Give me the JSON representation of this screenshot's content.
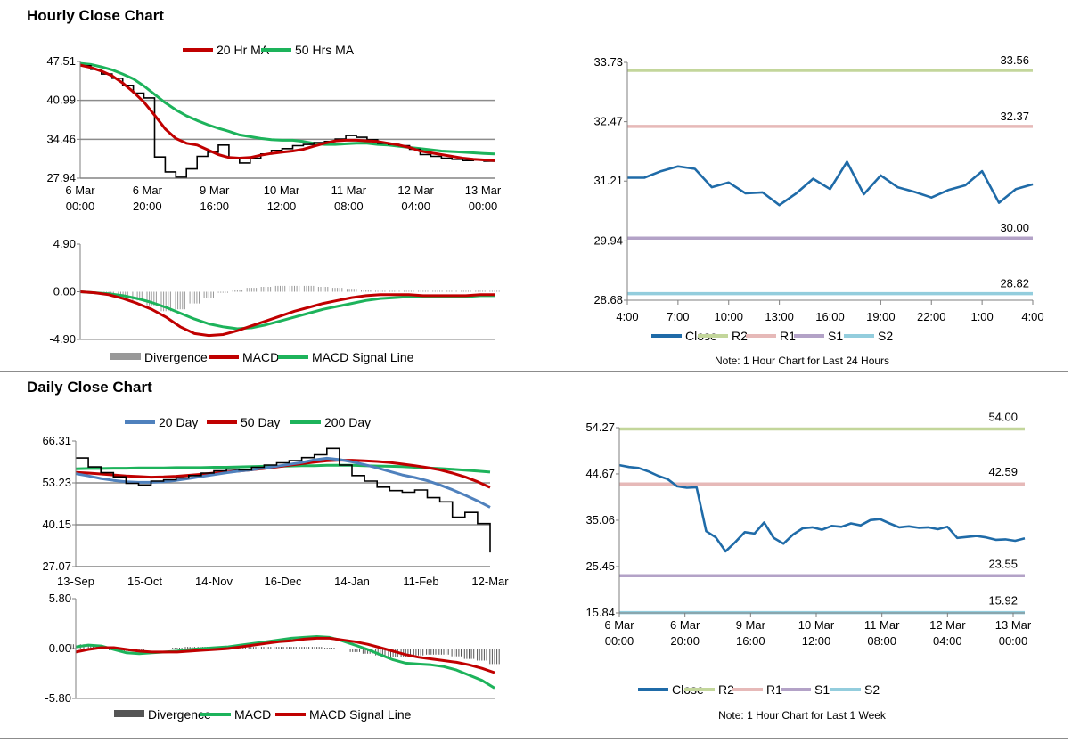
{
  "hourly": {
    "title": "Hourly Close Chart",
    "price_chart": {
      "type": "line",
      "legend": [
        {
          "name": "20 Hr MA",
          "color": "#c00000"
        },
        {
          "name": "50 Hrs MA",
          "color": "#1db35b"
        }
      ],
      "y_ticks": [
        "47.51",
        "40.99",
        "34.46",
        "27.94"
      ],
      "ylim": [
        27.94,
        47.51
      ],
      "x_ticks": [
        [
          "6 Mar",
          "00:00"
        ],
        [
          "6 Mar",
          "20:00"
        ],
        [
          "9 Mar",
          "16:00"
        ],
        [
          "10 Mar",
          "12:00"
        ],
        [
          "11 Mar",
          "08:00"
        ],
        [
          "12 Mar",
          "04:00"
        ],
        [
          "13 Mar",
          "00:00"
        ]
      ],
      "close": [
        46.8,
        46.2,
        45.4,
        44.7,
        43.5,
        42.2,
        41.4,
        31.5,
        29.0,
        28.1,
        29.5,
        31.6,
        32.3,
        33.5,
        31.4,
        30.5,
        31.3,
        32.0,
        32.6,
        32.9,
        33.4,
        33.6,
        33.9,
        34.1,
        34.5,
        35.1,
        34.8,
        34.4,
        33.8,
        33.6,
        33.4,
        32.8,
        31.9,
        31.6,
        31.3,
        31.1,
        30.9,
        31.0,
        30.8,
        30.9
      ],
      "ma20": [
        46.9,
        46.5,
        45.9,
        45.1,
        43.9,
        42.4,
        40.7,
        38.5,
        36.2,
        34.6,
        33.8,
        33.5,
        32.7,
        31.9,
        31.4,
        31.3,
        31.4,
        31.8,
        32.1,
        32.3,
        32.5,
        32.8,
        33.3,
        33.8,
        34.2,
        34.3,
        34.3,
        34.2,
        34.1,
        33.8,
        33.5,
        33.1,
        32.5,
        32.2,
        31.9,
        31.6,
        31.3,
        31.1,
        31.0,
        30.9
      ],
      "ma50": [
        47.2,
        47.0,
        46.6,
        46.1,
        45.4,
        44.6,
        43.4,
        42.0,
        40.6,
        39.4,
        38.4,
        37.6,
        36.9,
        36.3,
        35.8,
        35.2,
        34.9,
        34.6,
        34.4,
        34.3,
        34.3,
        34.1,
        33.8,
        33.6,
        33.6,
        33.7,
        33.8,
        33.8,
        33.6,
        33.5,
        33.3,
        33.1,
        32.9,
        32.7,
        32.5,
        32.4,
        32.3,
        32.2,
        32.1,
        32.0
      ]
    },
    "macd_chart": {
      "type": "line",
      "legend": [
        {
          "name": "Divergence",
          "color": "#999999"
        },
        {
          "name": "MACD",
          "color": "#c00000"
        },
        {
          "name": "MACD Signal Line",
          "color": "#1db35b"
        }
      ],
      "y_ticks": [
        "4.90",
        "0.00",
        "-4.90"
      ],
      "ylim": [
        -4.9,
        4.9
      ],
      "macd": [
        0,
        -0.1,
        -0.3,
        -0.7,
        -1.2,
        -1.8,
        -2.6,
        -3.6,
        -4.3,
        -4.5,
        -4.4,
        -4.0,
        -3.5,
        -3.0,
        -2.5,
        -2.0,
        -1.6,
        -1.2,
        -0.9,
        -0.6,
        -0.4,
        -0.3,
        -0.3,
        -0.3,
        -0.4,
        -0.4,
        -0.4,
        -0.4,
        -0.3,
        -0.3
      ],
      "signal": [
        0,
        -0.1,
        -0.2,
        -0.4,
        -0.7,
        -1.1,
        -1.6,
        -2.2,
        -2.8,
        -3.3,
        -3.6,
        -3.8,
        -3.7,
        -3.4,
        -3.0,
        -2.6,
        -2.2,
        -1.8,
        -1.5,
        -1.2,
        -0.9,
        -0.7,
        -0.6,
        -0.5,
        -0.5,
        -0.5,
        -0.5,
        -0.5,
        -0.4,
        -0.4
      ],
      "divergence": [
        0,
        -0.1,
        -0.2,
        -0.5,
        -0.9,
        -1.4,
        -2.0,
        -1.8,
        -1.2,
        -0.6,
        -0.1,
        0.2,
        0.4,
        0.5,
        0.6,
        0.6,
        0.6,
        0.5,
        0.4,
        0.3,
        0.2,
        0.1,
        0.1,
        0.1,
        0.1,
        0.1,
        0.1,
        0.1,
        0.1,
        0.1
      ]
    },
    "level_chart": {
      "type": "line",
      "y_ticks": [
        "33.73",
        "32.47",
        "31.21",
        "29.94",
        "28.68"
      ],
      "ylim": [
        28.68,
        33.73
      ],
      "x_ticks": [
        "4:00",
        "7:00",
        "10:00",
        "13:00",
        "16:00",
        "19:00",
        "22:00",
        "1:00",
        "4:00"
      ],
      "levels": [
        {
          "name": "R2",
          "value": 33.56,
          "label": "33.56",
          "color": "#c3d69b"
        },
        {
          "name": "R1",
          "value": 32.37,
          "label": "32.37",
          "color": "#e6b9b8"
        },
        {
          "name": "S1",
          "value": 30.0,
          "label": "30.00",
          "color": "#b3a2c7"
        },
        {
          "name": "S2",
          "value": 28.82,
          "label": "28.82",
          "color": "#93cddd"
        }
      ],
      "close": [
        31.28,
        31.28,
        31.42,
        31.52,
        31.47,
        31.08,
        31.18,
        30.95,
        30.97,
        30.7,
        30.95,
        31.26,
        31.04,
        31.62,
        30.93,
        31.33,
        31.08,
        30.98,
        30.86,
        31.02,
        31.12,
        31.42,
        30.75,
        31.04,
        31.14
      ],
      "legend": [
        {
          "name": "Close",
          "color": "#1f6ba8"
        },
        {
          "name": "R2",
          "color": "#c3d69b"
        },
        {
          "name": "R1",
          "color": "#e6b9b8"
        },
        {
          "name": "S1",
          "color": "#b3a2c7"
        },
        {
          "name": "S2",
          "color": "#93cddd"
        }
      ],
      "note": "Note: 1 Hour Chart for Last 24 Hours"
    }
  },
  "daily": {
    "title": "Daily Close Chart",
    "price_chart": {
      "type": "line",
      "legend": [
        {
          "name": "20 Day",
          "color": "#4f81bd"
        },
        {
          "name": "50 Day",
          "color": "#c00000"
        },
        {
          "name": "200 Day",
          "color": "#1db35b"
        }
      ],
      "y_ticks": [
        "66.31",
        "53.23",
        "40.15",
        "27.07"
      ],
      "ylim": [
        27.07,
        66.31
      ],
      "x_ticks": [
        "13-Sep",
        "15-Oct",
        "14-Nov",
        "16-Dec",
        "14-Jan",
        "11-Feb",
        "12-Mar"
      ],
      "close": [
        61.0,
        58.2,
        56.4,
        55.1,
        53.1,
        52.6,
        53.8,
        54.2,
        54.8,
        55.5,
        56.3,
        57.0,
        57.5,
        57.3,
        58.1,
        58.8,
        59.5,
        60.2,
        61.1,
        62.0,
        64.0,
        58.8,
        55.5,
        53.8,
        51.9,
        50.8,
        50.3,
        51.0,
        48.6,
        47.3,
        42.5,
        44.0,
        40.5,
        31.5
      ],
      "ma20": [
        56.1,
        55.4,
        54.6,
        54.0,
        53.6,
        53.4,
        53.4,
        53.6,
        54.0,
        54.6,
        55.2,
        55.8,
        56.4,
        56.9,
        57.3,
        57.9,
        58.4,
        59.0,
        59.6,
        60.4,
        60.9,
        60.5,
        59.8,
        58.9,
        57.9,
        56.8,
        55.7,
        54.9,
        53.9,
        52.6,
        51.1,
        49.4,
        47.6,
        45.6
      ],
      "ma50": [
        56.5,
        56.3,
        56.0,
        55.7,
        55.4,
        55.2,
        55.0,
        55.1,
        55.3,
        55.6,
        55.9,
        56.3,
        56.6,
        56.9,
        57.3,
        57.7,
        58.2,
        58.7,
        59.2,
        59.7,
        60.1,
        60.3,
        60.3,
        60.1,
        59.9,
        59.6,
        59.1,
        58.6,
        58.0,
        57.3,
        56.3,
        55.1,
        53.6,
        51.8
      ],
      "ma200": [
        57.6,
        57.7,
        57.7,
        57.8,
        57.8,
        57.9,
        57.9,
        57.9,
        58.0,
        58.0,
        58.0,
        58.1,
        58.1,
        58.2,
        58.3,
        58.4,
        58.4,
        58.5,
        58.6,
        58.6,
        58.7,
        58.7,
        58.7,
        58.6,
        58.5,
        58.4,
        58.3,
        58.1,
        57.9,
        57.7,
        57.5,
        57.2,
        56.9,
        56.6
      ]
    },
    "macd_chart": {
      "type": "line",
      "legend": [
        {
          "name": "Divergence",
          "color": "#555555"
        },
        {
          "name": "MACD",
          "color": "#1db35b"
        },
        {
          "name": "MACD Signal Line",
          "color": "#c00000"
        }
      ],
      "y_ticks": [
        "5.80",
        "0.00",
        "-5.80"
      ],
      "ylim": [
        -5.8,
        5.8
      ],
      "macd": [
        0.2,
        0.4,
        0.3,
        -0.1,
        -0.5,
        -0.6,
        -0.5,
        -0.4,
        -0.3,
        -0.1,
        0.0,
        0.1,
        0.2,
        0.4,
        0.6,
        0.8,
        1.0,
        1.2,
        1.3,
        1.4,
        1.3,
        0.9,
        0.4,
        -0.1,
        -0.7,
        -1.3,
        -1.7,
        -1.8,
        -1.9,
        -2.1,
        -2.5,
        -3.1,
        -3.7,
        -4.6
      ],
      "signal": [
        -0.4,
        -0.1,
        0.1,
        0.1,
        -0.1,
        -0.3,
        -0.4,
        -0.4,
        -0.4,
        -0.3,
        -0.2,
        -0.1,
        0.0,
        0.2,
        0.4,
        0.6,
        0.8,
        0.9,
        1.1,
        1.2,
        1.2,
        1.0,
        0.8,
        0.5,
        0.1,
        -0.3,
        -0.7,
        -1.0,
        -1.2,
        -1.4,
        -1.6,
        -1.9,
        -2.3,
        -2.8
      ],
      "divergence": [
        0.5,
        0.5,
        0.2,
        -0.2,
        -0.3,
        -0.3,
        -0.1,
        0.0,
        0.1,
        0.2,
        0.2,
        0.2,
        0.2,
        0.2,
        0.2,
        0.2,
        0.2,
        0.2,
        0.2,
        0.2,
        0.1,
        -0.1,
        -0.4,
        -0.6,
        -0.8,
        -1.0,
        -1.0,
        -0.8,
        -0.7,
        -0.7,
        -0.9,
        -1.2,
        -1.4,
        -1.8
      ]
    },
    "level_chart": {
      "type": "line",
      "y_ticks": [
        "54.27",
        "44.67",
        "35.06",
        "25.45",
        "15.84"
      ],
      "ylim": [
        15.84,
        54.27
      ],
      "x_ticks": [
        [
          "6 Mar",
          "00:00"
        ],
        [
          "6 Mar",
          "20:00"
        ],
        [
          "9 Mar",
          "16:00"
        ],
        [
          "10 Mar",
          "12:00"
        ],
        [
          "11 Mar",
          "08:00"
        ],
        [
          "12 Mar",
          "04:00"
        ],
        [
          "13 Mar",
          "00:00"
        ]
      ],
      "levels": [
        {
          "name": "R2",
          "value": 54.0,
          "label": "54.00",
          "color": "#c3d69b"
        },
        {
          "name": "R1",
          "value": 42.59,
          "label": "42.59",
          "color": "#e6b9b8"
        },
        {
          "name": "S1",
          "value": 23.55,
          "label": "23.55",
          "color": "#b3a2c7"
        },
        {
          "name": "S2",
          "value": 15.92,
          "label": "15.92",
          "color": "#93cddd"
        }
      ],
      "close": [
        46.5,
        46.1,
        45.9,
        45.2,
        44.3,
        43.6,
        42.1,
        41.8,
        41.9,
        32.8,
        31.5,
        28.6,
        30.5,
        32.6,
        32.3,
        34.6,
        31.4,
        30.2,
        32.1,
        33.4,
        33.6,
        33.1,
        33.9,
        33.7,
        34.4,
        34.0,
        35.1,
        35.3,
        34.4,
        33.6,
        33.8,
        33.5,
        33.6,
        33.2,
        33.7,
        31.4,
        31.6,
        31.8,
        31.5,
        31.0,
        31.1,
        30.8,
        31.3
      ],
      "legend": [
        {
          "name": "Close",
          "color": "#1f6ba8"
        },
        {
          "name": "R2",
          "color": "#c3d69b"
        },
        {
          "name": "R1",
          "color": "#e6b9b8"
        },
        {
          "name": "S1",
          "color": "#b3a2c7"
        },
        {
          "name": "S2",
          "color": "#93cddd"
        }
      ],
      "note": "Note: 1 Hour Chart for Last 1 Week"
    }
  }
}
